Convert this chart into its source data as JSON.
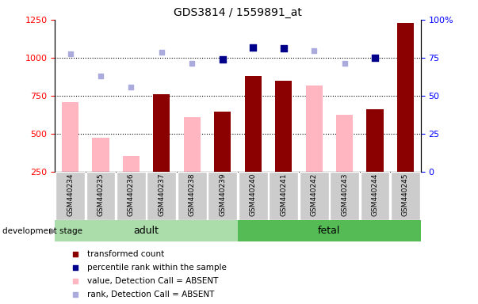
{
  "title": "GDS3814 / 1559891_at",
  "samples": [
    "GSM440234",
    "GSM440235",
    "GSM440236",
    "GSM440237",
    "GSM440238",
    "GSM440239",
    "GSM440240",
    "GSM440241",
    "GSM440242",
    "GSM440243",
    "GSM440244",
    "GSM440245"
  ],
  "transformed_count": [
    null,
    null,
    null,
    760,
    null,
    645,
    880,
    850,
    null,
    null,
    660,
    1230
  ],
  "percentile_rank": [
    null,
    null,
    null,
    null,
    null,
    990,
    1065,
    1060,
    null,
    null,
    998,
    null
  ],
  "value_absent": [
    710,
    475,
    355,
    null,
    610,
    null,
    null,
    null,
    820,
    625,
    null,
    null
  ],
  "rank_absent": [
    1025,
    880,
    805,
    1035,
    965,
    null,
    null,
    null,
    1045,
    965,
    null,
    null
  ],
  "left_ylim": [
    250,
    1250
  ],
  "right_ylim": [
    0,
    100
  ],
  "left_yticks": [
    250,
    500,
    750,
    1000,
    1250
  ],
  "right_yticks": [
    0,
    25,
    50,
    75,
    100
  ],
  "right_yticklabels": [
    "0",
    "25",
    "50",
    "75",
    "100%"
  ],
  "bar_color_dark_red": "#8B0000",
  "bar_color_pink": "#FFB6C1",
  "dot_color_blue": "#00008B",
  "dot_color_lightblue": "#AAAADD",
  "group_adult_color": "#AADDAA",
  "group_fetal_color": "#55BB55",
  "tick_label_bg": "#CCCCCC",
  "bar_width": 0.55
}
